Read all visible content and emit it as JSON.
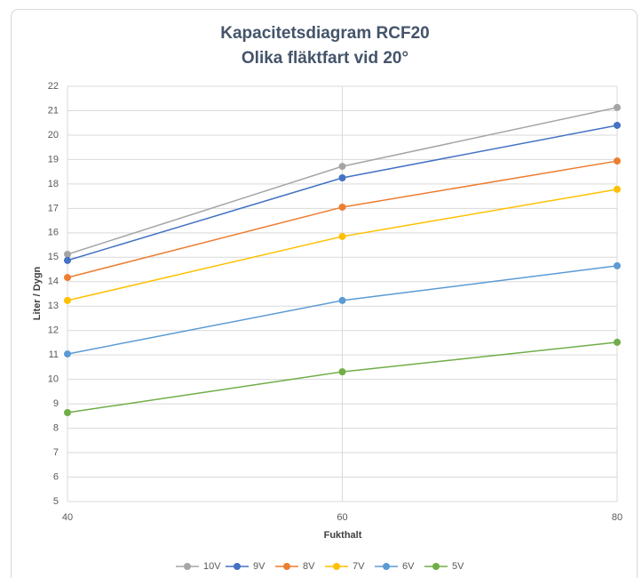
{
  "chart_data": {
    "type": "line",
    "title": "Kapacitetsdiagram RCF20",
    "subtitle": "Olika fläktfart vid 20°",
    "x_label": "Fukthalt",
    "y_label": "Liter / Dygn",
    "x": [
      40,
      60,
      80
    ],
    "series": [
      {
        "name": "10V",
        "color": "#a5a5a5",
        "values": [
          15.12,
          18.72,
          21.13
        ]
      },
      {
        "name": "9V",
        "color": "#4472c4",
        "values": [
          14.87,
          18.25,
          20.4
        ]
      },
      {
        "name": "8V",
        "color": "#ed7d31",
        "values": [
          14.17,
          17.05,
          18.94
        ]
      },
      {
        "name": "7V",
        "color": "#ffc000",
        "values": [
          13.23,
          15.85,
          17.78
        ]
      },
      {
        "name": "6V",
        "color": "#5b9bd5",
        "values": [
          11.04,
          13.23,
          14.65
        ]
      },
      {
        "name": "5V",
        "color": "#70ad47",
        "values": [
          8.64,
          10.31,
          11.52
        ]
      }
    ],
    "xlim": [
      40,
      80
    ],
    "xticks": [
      40,
      60,
      80
    ],
    "ylim": [
      5,
      22
    ],
    "yticks": [
      5,
      6,
      7,
      8,
      9,
      10,
      11,
      12,
      13,
      14,
      15,
      16,
      17,
      18,
      19,
      20,
      21,
      22
    ],
    "grid": true,
    "legend": "bottom"
  }
}
